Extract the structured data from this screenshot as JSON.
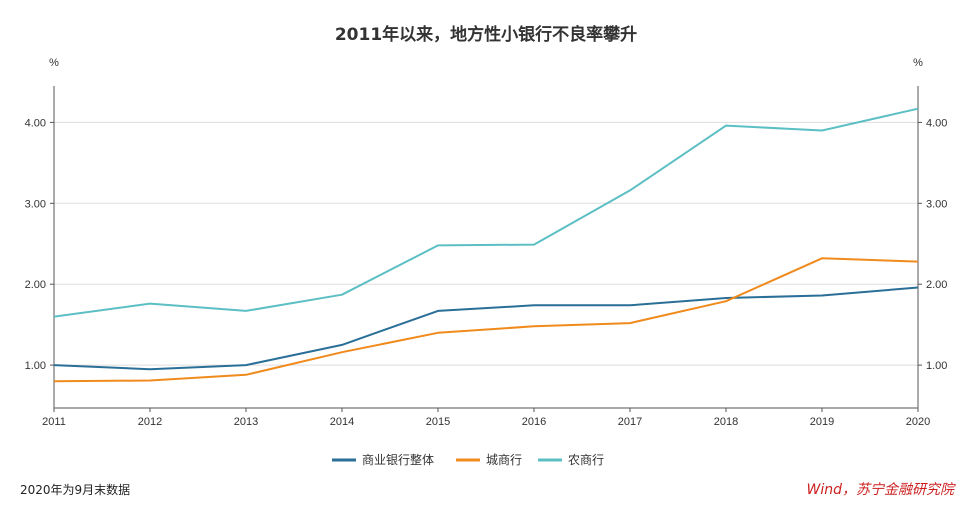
{
  "chart_data": {
    "type": "line",
    "title": "2011年以来，地方性小银行不良率攀升",
    "x": [
      "2011",
      "2012",
      "2013",
      "2014",
      "2015",
      "2016",
      "2017",
      "2018",
      "2019",
      "2020"
    ],
    "series": [
      {
        "name": "商业银行整体",
        "color": "#2a6f97",
        "values": [
          1.0,
          0.95,
          1.0,
          1.25,
          1.67,
          1.74,
          1.74,
          1.83,
          1.86,
          1.96
        ]
      },
      {
        "name": "城商行",
        "color": "#f08a1c",
        "values": [
          0.8,
          0.81,
          0.88,
          1.16,
          1.4,
          1.48,
          1.52,
          1.79,
          2.32,
          2.28
        ]
      },
      {
        "name": "农商行",
        "color": "#5cbfc4",
        "values": [
          1.6,
          1.76,
          1.67,
          1.87,
          2.48,
          2.49,
          3.16,
          3.96,
          3.9,
          4.17
        ]
      }
    ],
    "y_ticks": [
      "1.00",
      "2.00",
      "3.00",
      "4.00"
    ],
    "ylim": [
      0.47,
      4.45
    ],
    "y_unit_left": "%",
    "y_unit_right": "%",
    "grid": true,
    "legend": "bottom-center"
  },
  "footer": {
    "note": "2020年为9月末数据",
    "source": "Wind，苏宁金融研究院"
  }
}
